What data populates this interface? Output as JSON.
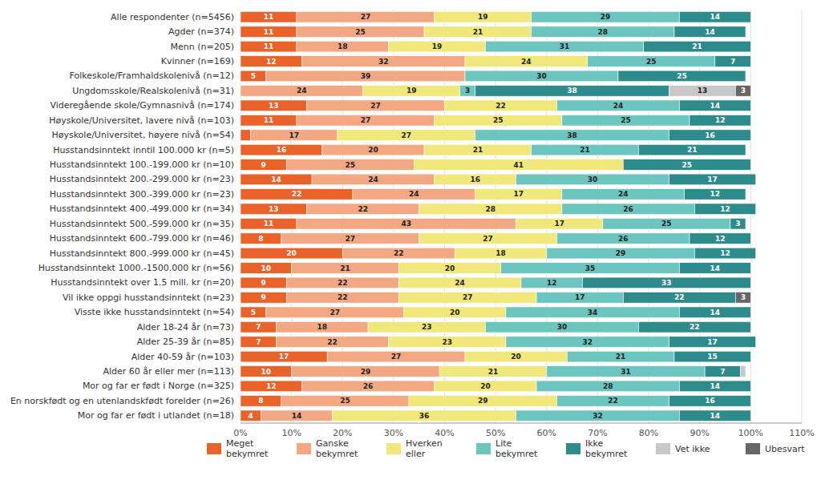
{
  "chart_data": {
    "type": "bar",
    "orientation": "horizontal",
    "stacked": true,
    "data_labels": true,
    "grid": true,
    "legend": "bottom",
    "categories": [
      "Alle respondenter (n=5456)",
      "Agder (n=374)",
      "Menn (n=205)",
      "Kvinner (n=169)",
      "Folkeskole/Framhaldskolenivå (n=12)",
      "Ungdomsskole/Realskolenivå (n=31)",
      "Videregående skole/Gymnasnivå (n=174)",
      "Høyskole/Universitet, lavere nivå (n=103)",
      "Høyskole/Universitet, høyere nivå (n=54)",
      "Husstandsinntekt inntil 100.000 kr (n=5)",
      "Husstandsinntekt 100.-199.000 kr (n=10)",
      "Husstandsinntekt 200.-299.000 kr (n=23)",
      "Husstandsinntekt 300.-399.000 kr (n=23)",
      "Husstandsinntekt 400.-499.000 kr (n=34)",
      "Husstandsinntekt 500.-599.000 kr (n=35)",
      "Husstandsinntekt 600.-799.000 kr (n=46)",
      "Husstandsinntekt 800.-999.000 kr (n=45)",
      "Husstandsinntekt 1000.-1500.000 kr (n=56)",
      "Husstandsinntekt over 1.5 mill. kr (n=20)",
      "Vil ikke oppgi husstandsinntekt (n=23)",
      "Visste ikke husstandsinntekt (n=54)",
      "Alder 18-24 år (n=73)",
      "Alder 25-39 år (n=85)",
      "Alder 40-59 år (n=103)",
      "Alder 60 år eller mer (n=113)",
      "Mor og far er født i Norge (n=325)",
      "En norskfødt og en utenlandskfødt forelder (n=26)",
      "Mor og far er født i utlandet (n=18)"
    ],
    "series": [
      {
        "name": "Meget\nbekymret",
        "color": "#E8622A",
        "values": [
          11,
          11,
          11,
          12,
          5,
          0,
          13,
          11,
          2,
          16,
          9,
          14,
          22,
          13,
          11,
          8,
          20,
          10,
          9,
          9,
          5,
          7,
          7,
          17,
          10,
          12,
          8,
          4
        ]
      },
      {
        "name": "Ganske\nbekymret",
        "color": "#F2A882",
        "values": [
          27,
          25,
          18,
          32,
          39,
          24,
          27,
          27,
          17,
          20,
          25,
          24,
          24,
          22,
          43,
          27,
          22,
          21,
          22,
          22,
          27,
          18,
          22,
          27,
          29,
          26,
          25,
          14
        ]
      },
      {
        "name": "Hverken\neller",
        "color": "#F0E87A",
        "values": [
          19,
          21,
          19,
          24,
          0,
          19,
          22,
          25,
          27,
          21,
          41,
          16,
          17,
          28,
          17,
          27,
          18,
          20,
          24,
          27,
          20,
          23,
          23,
          20,
          21,
          20,
          29,
          36
        ]
      },
      {
        "name": "Lite\nbekymret",
        "color": "#6CC5BE",
        "values": [
          29,
          28,
          31,
          25,
          30,
          3,
          24,
          25,
          38,
          21,
          0,
          30,
          24,
          26,
          25,
          26,
          29,
          35,
          12,
          17,
          34,
          30,
          32,
          21,
          31,
          28,
          22,
          32
        ]
      },
      {
        "name": "Ikke\nbekymret",
        "color": "#2E8B8B",
        "values": [
          14,
          14,
          21,
          7,
          25,
          38,
          14,
          12,
          16,
          21,
          25,
          17,
          12,
          12,
          3,
          12,
          12,
          14,
          33,
          22,
          14,
          22,
          17,
          15,
          7,
          14,
          16,
          14
        ]
      },
      {
        "name": "Vet ikke",
        "color": "#C8C8C8",
        "values": [
          0,
          0,
          0,
          0,
          0,
          13,
          0,
          0,
          0,
          0,
          0,
          0,
          0,
          0,
          0,
          0,
          0,
          0,
          0,
          0,
          0,
          0,
          0,
          0,
          1,
          0,
          0,
          0
        ]
      },
      {
        "name": "Ubesvart",
        "color": "#666666",
        "values": [
          0,
          0,
          0,
          0,
          0,
          3,
          0,
          0,
          0,
          0,
          0,
          0,
          0,
          0,
          0,
          0,
          0,
          0,
          0,
          3,
          0,
          0,
          0,
          0,
          0,
          0,
          0,
          0
        ]
      }
    ],
    "xlim": [
      0,
      110
    ],
    "xticks": [
      {
        "value": 0,
        "label": "0%"
      },
      {
        "value": 10,
        "label": "10%"
      },
      {
        "value": 20,
        "label": "20%"
      },
      {
        "value": 30,
        "label": "30%"
      },
      {
        "value": 40,
        "label": "40%"
      },
      {
        "value": 50,
        "label": "50%"
      },
      {
        "value": 60,
        "label": "60%"
      },
      {
        "value": 70,
        "label": "70%"
      },
      {
        "value": 80,
        "label": "80%"
      },
      {
        "value": 90,
        "label": "90%"
      },
      {
        "value": 100,
        "label": "100%"
      },
      {
        "value": 110,
        "label": "110%"
      }
    ]
  }
}
